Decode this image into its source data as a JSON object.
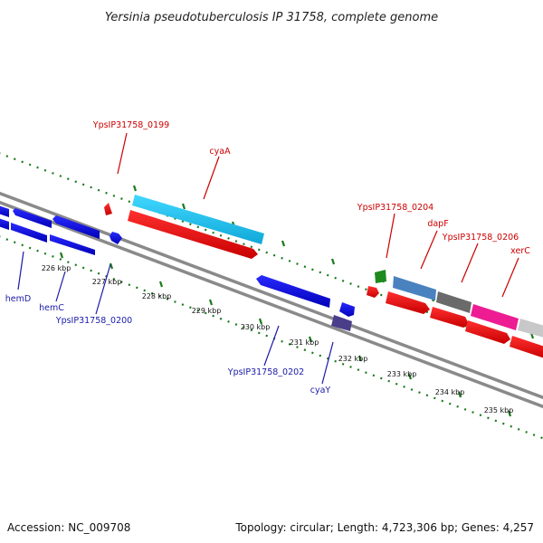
{
  "title": "Yersinia pseudotuberculosis IP 31758, complete genome",
  "accession": "Accession: NC_009708",
  "topology_info": "Topology: circular; Length: 4,723,306 bp; Genes: 4,257",
  "colors": {
    "forward_label": "#cc0000",
    "reverse_label": "#1a1aa8",
    "backbone": "#888888",
    "tick": "#1a7a1a"
  },
  "ticks": [
    {
      "label": "226 kbp"
    },
    {
      "label": "227 kbp"
    },
    {
      "label": "228 kbp"
    },
    {
      "label": "229 kbp"
    },
    {
      "label": "230 kbp"
    },
    {
      "label": "231 kbp"
    },
    {
      "label": "232 kbp"
    },
    {
      "label": "233 kbp"
    },
    {
      "label": "234 kbp"
    },
    {
      "label": "235 kbp"
    }
  ],
  "labels": {
    "forward": [
      {
        "text": "YpsIP31758_0199"
      },
      {
        "text": "cyaA"
      },
      {
        "text": "YpsIP31758_0204"
      },
      {
        "text": "dapF"
      },
      {
        "text": "YpsIP31758_0206"
      },
      {
        "text": "xerC"
      }
    ],
    "reverse": [
      {
        "text": "hemD"
      },
      {
        "text": "hemC"
      },
      {
        "text": "YpsIP31758_0200"
      },
      {
        "text": "YpsIP31758_0202"
      },
      {
        "text": "cyaY"
      }
    ]
  }
}
